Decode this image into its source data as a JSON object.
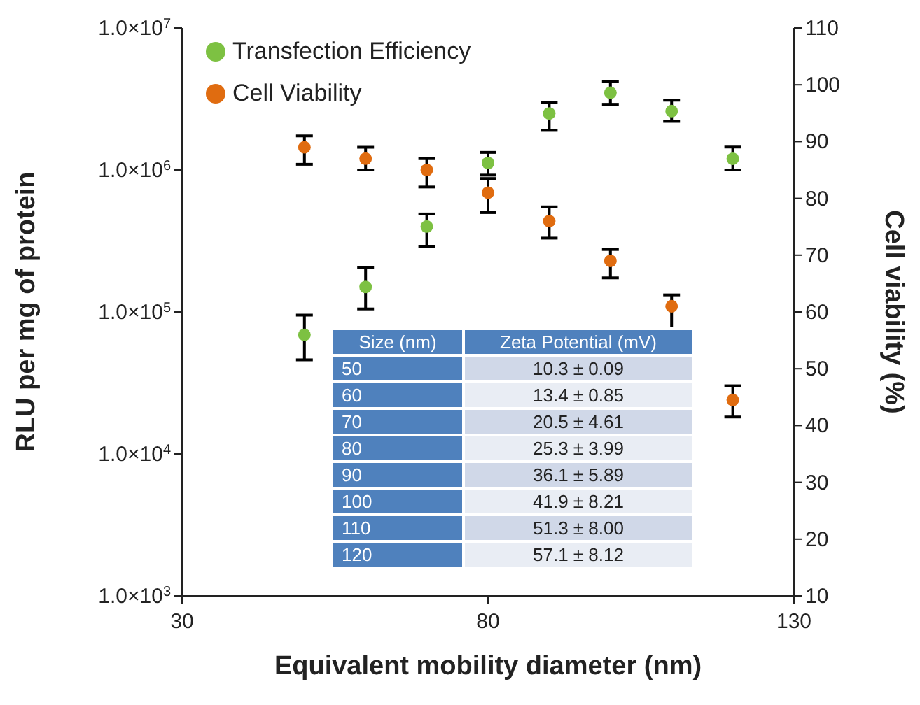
{
  "chart_data": {
    "type": "scatter",
    "xlabel": "Equivalent mobility diameter (nm)",
    "ylabel": "RLU per mg of protein",
    "y2label": "Cell viability (%)",
    "x": [
      50,
      60,
      70,
      80,
      90,
      100,
      110,
      120
    ],
    "xlim": [
      30,
      130
    ],
    "xticks": [
      30,
      80,
      130
    ],
    "log": "y",
    "ylim": [
      1000,
      10000000
    ],
    "yticks": [
      {
        "value": 1000,
        "label": "1.0×10$^{3}$"
      },
      {
        "value": 10000,
        "label": "1.0×10$^{4}$"
      },
      {
        "value": 100000,
        "label": "1.0×10$^{5}$"
      },
      {
        "value": 1000000,
        "label": "1.0×10$^{6}$"
      },
      {
        "value": 10000000,
        "label": "1.0×10$^{7}$"
      }
    ],
    "y2lim": [
      10,
      110
    ],
    "y2ticks": [
      10,
      20,
      30,
      40,
      50,
      60,
      70,
      80,
      90,
      100,
      110
    ],
    "marker": "circle",
    "legend": "top left",
    "grid": false,
    "series": [
      {
        "name": "Transfection Efficiency",
        "color": "#7dc142",
        "values": [
          69000,
          150000,
          400000,
          1120000,
          2500000,
          3500000,
          2600000,
          1200000
        ],
        "errors": [
          [
            46000,
            95000
          ],
          [
            105000,
            205000
          ],
          [
            290000,
            490000
          ],
          [
            920000,
            1330000
          ],
          [
            1900000,
            3000000
          ],
          [
            2900000,
            4200000
          ],
          [
            2200000,
            3100000
          ],
          [
            1000000,
            1450000
          ]
        ]
      },
      {
        "name": "Cell Viability",
        "color": "#e06c10",
        "axis": "y2",
        "values": [
          89,
          87,
          85,
          81,
          76,
          69,
          61,
          44.5
        ],
        "errors": [
          [
            86,
            91
          ],
          [
            85,
            89
          ],
          [
            82,
            87
          ],
          [
            77.5,
            83.5
          ],
          [
            73,
            78.5
          ],
          [
            66,
            71
          ],
          [
            57,
            63
          ],
          [
            41.5,
            47
          ]
        ]
      }
    ],
    "annotations": [
      "Size (nm)",
      "Zeta Potential (mV)",
      "50",
      "10.3 ± 0.09",
      "60",
      "13.4 ± 0.85",
      "70",
      "20.5 ± 4.61",
      "80",
      "25.3 ± 3.99",
      "90",
      "36.1 ± 5.89",
      "100",
      "41.9 ± 8.21",
      "110",
      "51.3 ± 8.00",
      "120",
      "57.1 ± 8.12"
    ]
  }
}
